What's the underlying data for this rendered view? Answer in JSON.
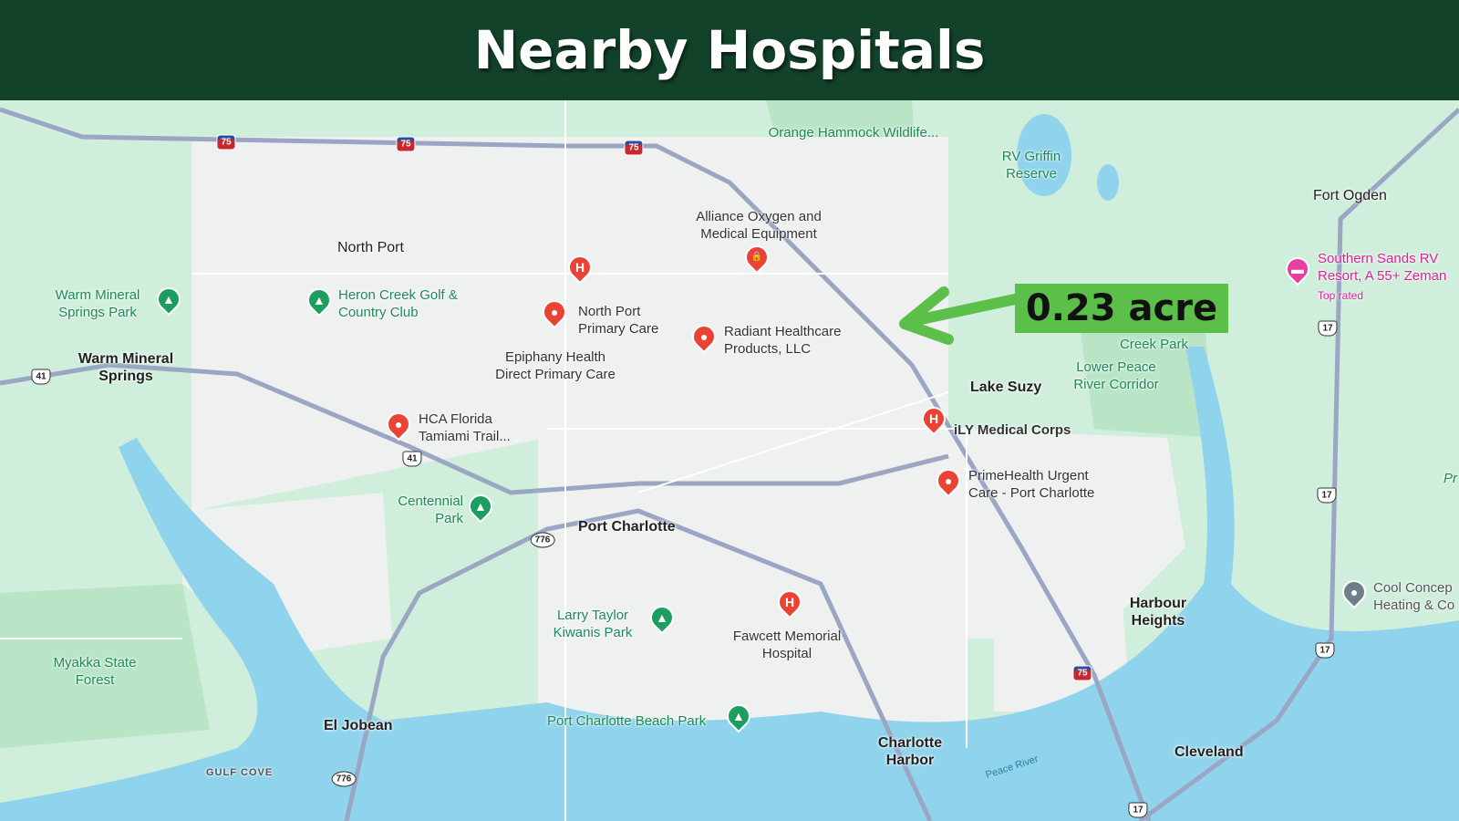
{
  "header": {
    "title": "Nearby Hospitals"
  },
  "annotation": {
    "text": "0.23 acre",
    "color": "#5cbf4a"
  },
  "colors": {
    "header_bg": "#12422a",
    "land": "#cfeedb",
    "water": "#8fd3ec",
    "urban": "#eef1ef",
    "highway": "#9aa6c4",
    "hospital_pin": "#ea4335",
    "park_pin": "#1e9e5e",
    "hotel_pin": "#e83ea3"
  },
  "places": {
    "orange_hammock": "Orange Hammock Wildlife...",
    "rv_griffin": "RV Griffin Reserve",
    "fort_ogden": "Fort Ogden",
    "southern_sands": "Southern Sands RV Resort, A 55+ Zeman",
    "top_rated": "Top rated",
    "alliance": "Alliance Oxygen and Medical Equipment",
    "north_port": "North Port",
    "warm_mineral_park": "Warm Mineral Springs Park",
    "heron_creek": "Heron Creek Golf & Country Club",
    "north_port_primary": "North Port Primary Care",
    "epiphany": "Epiphany Health Direct Primary Care",
    "radiant": "Radiant Healthcare Products, LLC",
    "warm_mineral_springs": "Warm Mineral Springs",
    "lake_suzy": "Lake Suzy",
    "lower_peace": "Lower Peace River Corridor",
    "creek_park": "Creek Park",
    "hca": "HCA Florida Tamiami Trail...",
    "ily": "iLY Medical Corps",
    "primehealth": "PrimeHealth Urgent Care - Port Charlotte",
    "centennial": "Centennial Park",
    "port_charlotte": "Port Charlotte",
    "larry_taylor": "Larry Taylor Kiwanis Park",
    "fawcett": "Fawcett Memorial Hospital",
    "harbour_heights": "Harbour Heights",
    "myakka": "Myakka State Forest",
    "el_jobean": "El Jobean",
    "beach_park": "Port Charlotte Beach Park",
    "charlotte_harbor": "Charlotte Harbor",
    "cleveland": "Cleveland",
    "gulf_cove": "GULF COVE",
    "peace_river": "Peace River",
    "cool_concepts": "Cool Concep Heating & Co",
    "pr": "Pr"
  },
  "shields": {
    "i75": "75",
    "us41": "41",
    "us17": "17",
    "sr776": "776"
  },
  "pin_glyphs": {
    "hospital": "H",
    "dot": "●",
    "shop": "🔒",
    "park": "▲",
    "hotel": "▬"
  }
}
